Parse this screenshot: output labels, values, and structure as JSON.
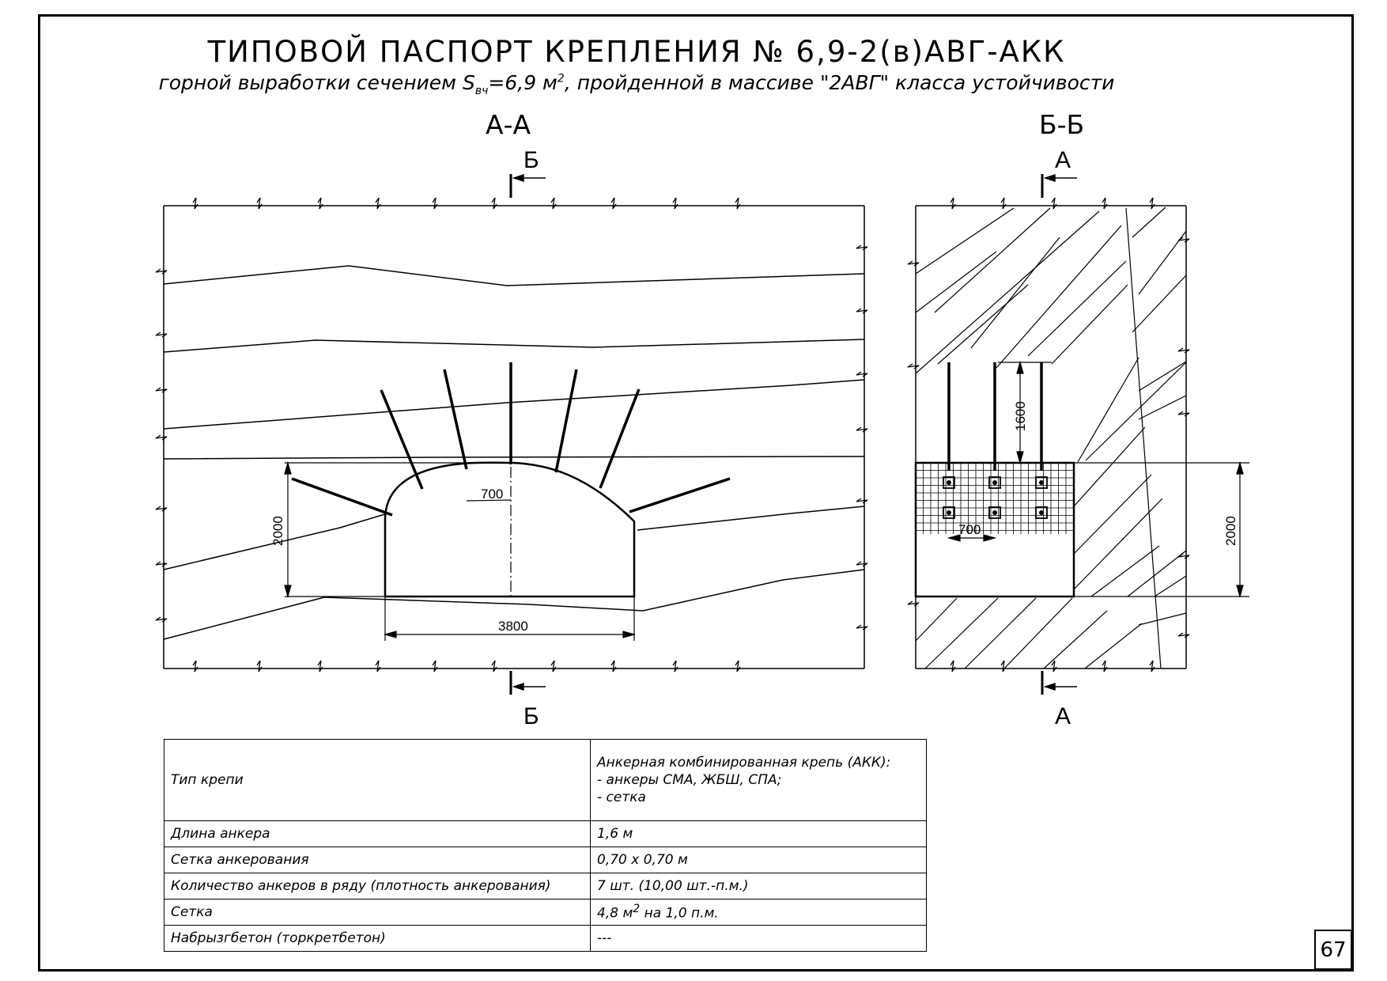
{
  "title": "ТИПОВОЙ ПАСПОРТ КРЕПЛЕНИЯ № 6,9-2(в)АВГ-АКК",
  "subtitle": {
    "before": "горной выработки сечением S",
    "sub": "вч",
    "middle": "=6,9 м",
    "sup": "2",
    "after": ", пройденной в массиве \"2АВГ\" класса устойчивости"
  },
  "section_aa": {
    "label": "А-А",
    "cut_top": "Б",
    "cut_bottom": "Б",
    "dim_height": "2000",
    "dim_width": "3800",
    "dim_spacing": "700"
  },
  "section_bb": {
    "label": "Б-Б",
    "cut_top": "А",
    "cut_bottom": "А",
    "dim_anchor": "1600",
    "dim_height": "2000",
    "dim_spacing": "700"
  },
  "table": {
    "rows": [
      {
        "param": "Тип крепи",
        "value_lines": [
          "Анкерная комбинированная крепь (АКК):",
          "- анкеры СМА, ЖБШ, СПА;",
          "- сетка"
        ]
      },
      {
        "param": "Длина анкера",
        "value": "1,6 м"
      },
      {
        "param": "Сетка анкерования",
        "value": "0,70 х 0,70 м"
      },
      {
        "param": "Количество анкеров в ряду (плотность анкерования)",
        "value": "7 шт. (10,00 шт.-п.м.)"
      },
      {
        "param": "Сетка",
        "value_main": "4,8 м",
        "value_sup": "2",
        "value_rest": " на 1,0 п.м."
      },
      {
        "param": "Набрызгбетон (торкретбетон)",
        "value": "---"
      }
    ]
  },
  "sheet_number": "67"
}
